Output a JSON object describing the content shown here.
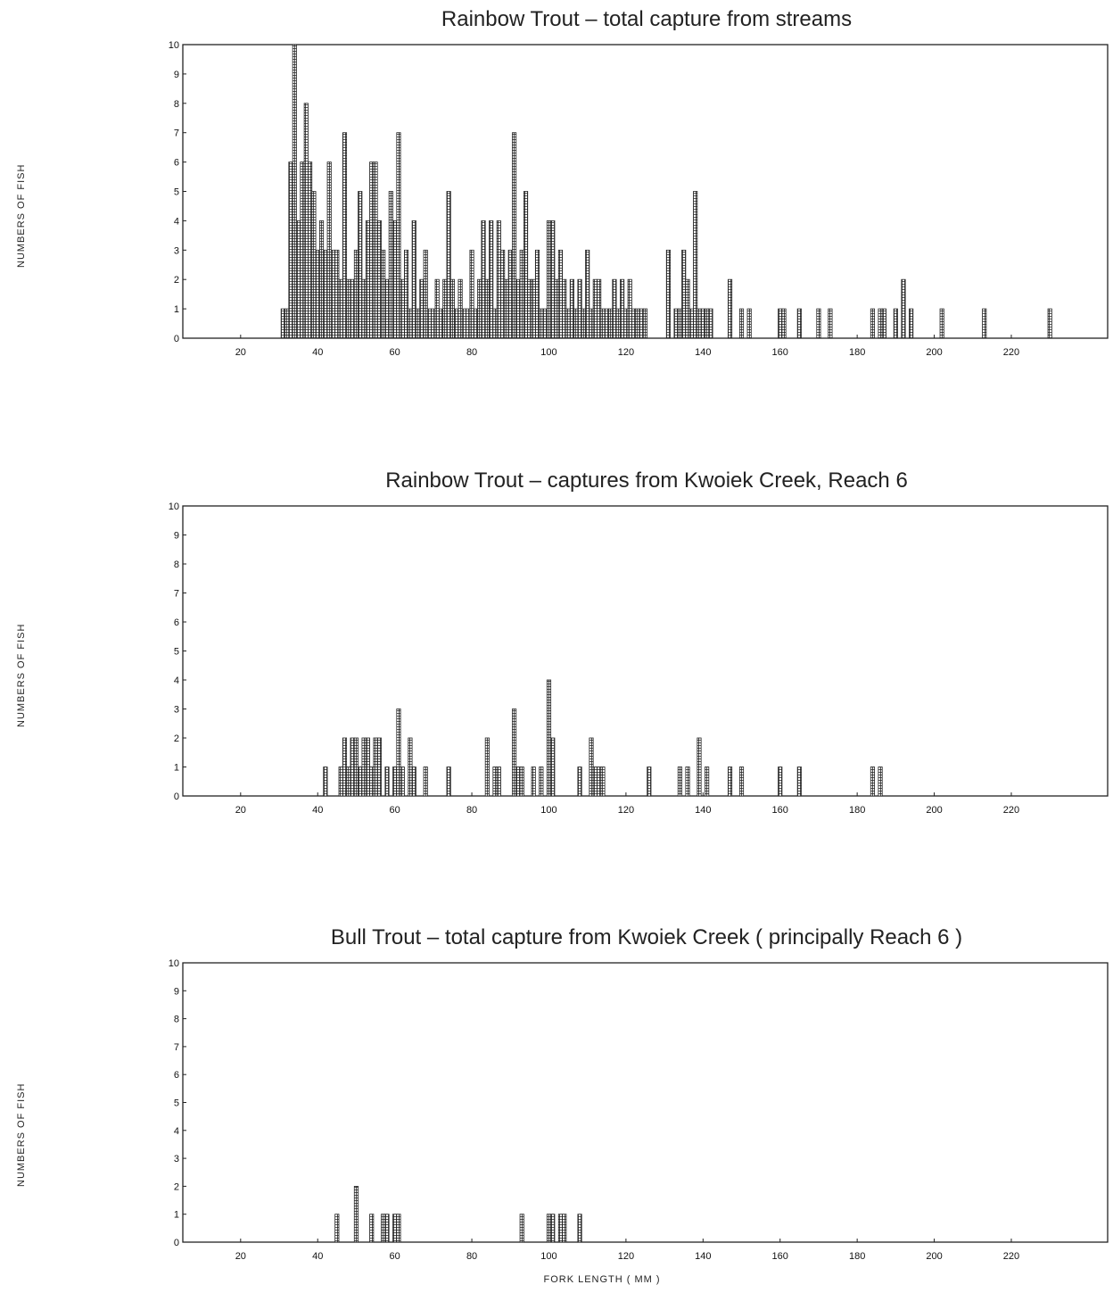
{
  "chart_data": [
    {
      "type": "bar",
      "title": "Rainbow Trout  –  total capture from streams",
      "ylabel": "NUMBERS OF FISH",
      "xlim": [
        5,
        245
      ],
      "ylim": [
        0,
        10
      ],
      "x_ticks": [
        20,
        40,
        60,
        80,
        100,
        120,
        140,
        160,
        180,
        200,
        220
      ],
      "y_ticks": [
        0,
        1,
        2,
        3,
        4,
        5,
        6,
        7,
        8,
        9,
        10
      ],
      "x": [
        31,
        32,
        33,
        34,
        35,
        36,
        37,
        38,
        39,
        40,
        41,
        42,
        43,
        44,
        45,
        46,
        47,
        48,
        49,
        50,
        51,
        52,
        53,
        54,
        55,
        56,
        57,
        58,
        59,
        60,
        61,
        62,
        63,
        64,
        65,
        66,
        67,
        68,
        69,
        70,
        71,
        72,
        73,
        74,
        75,
        76,
        77,
        78,
        79,
        80,
        81,
        82,
        83,
        84,
        85,
        86,
        87,
        88,
        89,
        90,
        91,
        92,
        93,
        94,
        95,
        96,
        97,
        98,
        99,
        100,
        101,
        102,
        103,
        104,
        105,
        106,
        107,
        108,
        109,
        110,
        111,
        112,
        113,
        114,
        115,
        116,
        117,
        118,
        119,
        120,
        121,
        122,
        123,
        124,
        125,
        131,
        133,
        134,
        135,
        136,
        137,
        138,
        139,
        140,
        141,
        142,
        147,
        150,
        152,
        160,
        161,
        165,
        170,
        173,
        184,
        186,
        187,
        190,
        192,
        194,
        202,
        213,
        230
      ],
      "values": [
        1,
        1,
        6,
        10,
        4,
        6,
        8,
        6,
        5,
        3,
        4,
        3,
        6,
        3,
        3,
        2,
        7,
        2,
        2,
        3,
        5,
        2,
        4,
        6,
        6,
        4,
        3,
        2,
        5,
        4,
        7,
        2,
        3,
        1,
        4,
        1,
        2,
        3,
        1,
        1,
        2,
        1,
        2,
        5,
        2,
        1,
        2,
        1,
        1,
        3,
        1,
        2,
        4,
        2,
        4,
        1,
        4,
        3,
        2,
        3,
        7,
        2,
        3,
        5,
        2,
        2,
        3,
        1,
        1,
        4,
        4,
        2,
        3,
        2,
        1,
        2,
        1,
        2,
        1,
        3,
        1,
        2,
        2,
        1,
        1,
        1,
        2,
        1,
        2,
        1,
        2,
        1,
        1,
        1,
        1,
        3,
        1,
        1,
        3,
        2,
        1,
        5,
        1,
        1,
        1,
        1,
        2,
        1,
        1,
        1,
        1,
        1,
        1,
        1,
        1,
        1,
        1,
        1,
        2,
        1,
        1,
        1,
        1
      ]
    },
    {
      "type": "bar",
      "title": "Rainbow Trout  –  captures from Kwoiek Creek, Reach 6",
      "ylabel": "NUMBERS OF FISH",
      "xlim": [
        5,
        245
      ],
      "ylim": [
        0,
        10
      ],
      "x_ticks": [
        20,
        40,
        60,
        80,
        100,
        120,
        140,
        160,
        180,
        200,
        220
      ],
      "y_ticks": [
        0,
        1,
        2,
        3,
        4,
        5,
        6,
        7,
        8,
        9,
        10
      ],
      "x": [
        42,
        46,
        47,
        48,
        49,
        50,
        51,
        52,
        53,
        54,
        55,
        56,
        58,
        60,
        61,
        62,
        64,
        65,
        68,
        74,
        84,
        86,
        87,
        91,
        92,
        93,
        96,
        98,
        100,
        101,
        108,
        111,
        112,
        113,
        114,
        126,
        134,
        136,
        139,
        141,
        147,
        150,
        160,
        165,
        184,
        186
      ],
      "values": [
        1,
        1,
        2,
        1,
        2,
        2,
        1,
        2,
        2,
        1,
        2,
        2,
        1,
        1,
        3,
        1,
        2,
        1,
        1,
        1,
        2,
        1,
        1,
        3,
        1,
        1,
        1,
        1,
        4,
        2,
        1,
        2,
        1,
        1,
        1,
        1,
        1,
        1,
        2,
        1,
        1,
        1,
        1,
        1,
        1,
        1
      ]
    },
    {
      "type": "bar",
      "title": "Bull Trout  –  total capture from Kwoiek Creek ( principally Reach 6 )",
      "ylabel": "NUMBERS OF FISH",
      "xlabel": "FORK LENGTH    ( MM )",
      "xlim": [
        5,
        245
      ],
      "ylim": [
        0,
        10
      ],
      "x_ticks": [
        20,
        40,
        60,
        80,
        100,
        120,
        140,
        160,
        180,
        200,
        220
      ],
      "y_ticks": [
        0,
        1,
        2,
        3,
        4,
        5,
        6,
        7,
        8,
        9,
        10
      ],
      "x": [
        45,
        50,
        54,
        57,
        58,
        60,
        61,
        93,
        100,
        101,
        103,
        104,
        108
      ],
      "values": [
        1,
        2,
        1,
        1,
        1,
        1,
        1,
        1,
        1,
        1,
        1,
        1,
        1
      ]
    }
  ]
}
